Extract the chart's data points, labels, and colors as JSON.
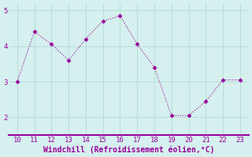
{
  "x": [
    10,
    11,
    12,
    13,
    14,
    15,
    16,
    17,
    18,
    19,
    20,
    21,
    22,
    23
  ],
  "y": [
    3.0,
    4.4,
    4.05,
    3.6,
    4.2,
    4.7,
    4.85,
    4.05,
    3.4,
    2.05,
    2.05,
    2.45,
    3.05,
    3.05
  ],
  "line_color": "#990099",
  "marker": "D",
  "marker_size": 2.5,
  "line_width": 0.8,
  "xlabel": "Windchill (Refroidissement éolien,°C)",
  "xlabel_fontsize": 7,
  "background_color": "#d5f0ee",
  "grid_color": "#b8deda",
  "spine_color": "#990099",
  "xlim": [
    9.5,
    23.5
  ],
  "ylim": [
    1.5,
    5.2
  ],
  "yticks": [
    2,
    3,
    4,
    5
  ],
  "xticks": [
    10,
    11,
    12,
    13,
    14,
    15,
    16,
    17,
    18,
    19,
    20,
    21,
    22,
    23
  ],
  "tick_fontsize": 6.5,
  "tick_color": "#990099",
  "label_color": "#990099"
}
